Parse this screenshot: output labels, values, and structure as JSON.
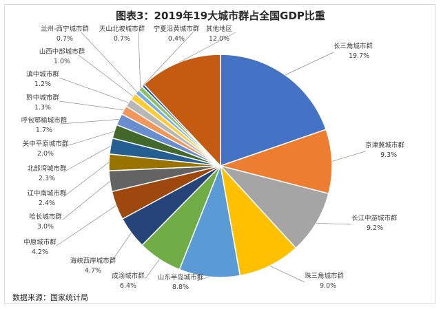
{
  "chart_data": {
    "type": "pie",
    "title": "图表3：2019年19大城市群占全国GDP比重",
    "source": "数据来源：国家统计局",
    "slices": [
      {
        "name": "长三角城市群",
        "value": 19.7,
        "label": "19.7%",
        "color": "#4472c4"
      },
      {
        "name": "京津冀城市群",
        "value": 9.3,
        "label": "9.3%",
        "color": "#ed7d31"
      },
      {
        "name": "长江中游城市群",
        "value": 9.2,
        "label": "9.2%",
        "color": "#a5a5a5"
      },
      {
        "name": "珠三角城市群",
        "value": 9.0,
        "label": "9.0%",
        "color": "#ffc000"
      },
      {
        "name": "山东半岛城市群",
        "value": 8.8,
        "label": "8.8%",
        "color": "#5b9bd5"
      },
      {
        "name": "成渝城市群",
        "value": 6.4,
        "label": "6.4%",
        "color": "#70ad47"
      },
      {
        "name": "海峡西岸城市群",
        "value": 4.7,
        "label": "4.7%",
        "color": "#264478"
      },
      {
        "name": "中原城市群",
        "value": 4.2,
        "label": "4.2%",
        "color": "#9e480e"
      },
      {
        "name": "哈长城市群",
        "value": 3.0,
        "label": "3.0%",
        "color": "#636363"
      },
      {
        "name": "辽中南城市群",
        "value": 2.4,
        "label": "2.4%",
        "color": "#997300"
      },
      {
        "name": "北部湾城市群",
        "value": 2.3,
        "label": "2.3%",
        "color": "#255e91"
      },
      {
        "name": "关中平原城市群",
        "value": 2.0,
        "label": "2.0%",
        "color": "#43682b"
      },
      {
        "name": "呼包鄂榆城市群",
        "value": 1.7,
        "label": "1.7%",
        "color": "#698ed0"
      },
      {
        "name": "黔中城市群",
        "value": 1.3,
        "label": "1.3%",
        "color": "#f1975a"
      },
      {
        "name": "滇中城市群",
        "value": 1.2,
        "label": "1.2%",
        "color": "#b7b7b7"
      },
      {
        "name": "山西中部城市群",
        "value": 1.0,
        "label": "1.0%",
        "color": "#ffcd33"
      },
      {
        "name": "兰州-西宁城市群",
        "value": 0.7,
        "label": "0.7%",
        "color": "#7cafdd"
      },
      {
        "name": "天山北坡城市群",
        "value": 0.7,
        "label": "0.7%",
        "color": "#8cc168"
      },
      {
        "name": "宁夏沿黄城市群",
        "value": 0.4,
        "label": "0.4%",
        "color": "#335aa1"
      },
      {
        "name": "其他地区",
        "value": 12.0,
        "label": "12.0%",
        "color": "#c55a11"
      }
    ]
  }
}
